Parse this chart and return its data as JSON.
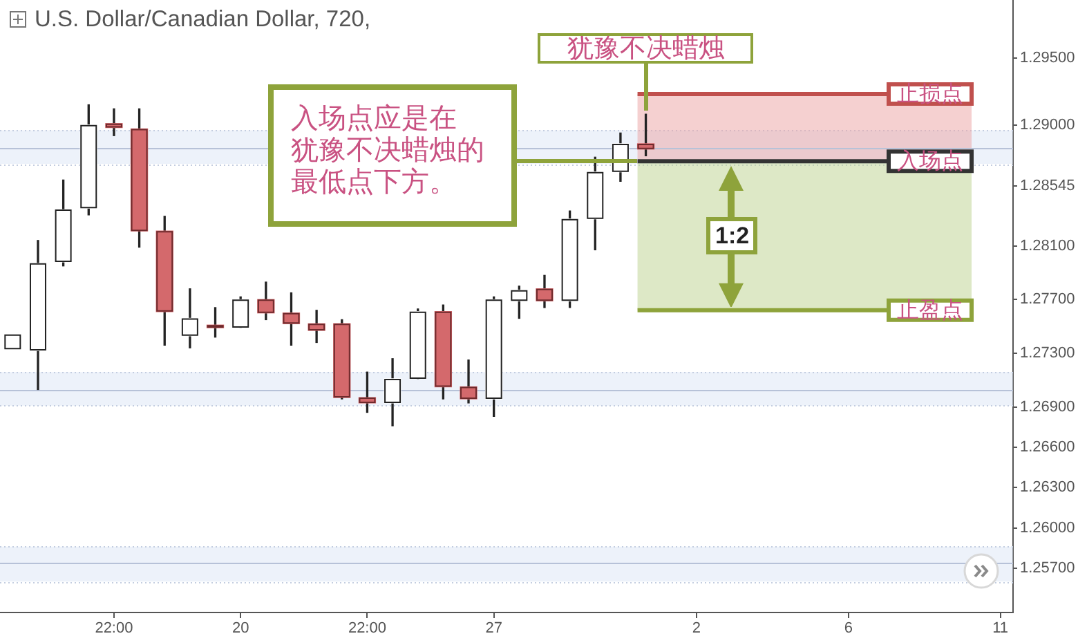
{
  "chart_data": {
    "type": "candlestick",
    "title": "U.S. Dollar/Canadian Dollar, 720,",
    "categories": [
      null,
      null,
      null,
      null,
      "22:00",
      null,
      null,
      null,
      null,
      "20",
      null,
      null,
      null,
      null,
      "22:00",
      null,
      null,
      null,
      null,
      "27",
      null,
      null,
      null,
      null,
      null,
      null,
      null,
      "2",
      null,
      null,
      null,
      null,
      null,
      "6",
      null,
      null,
      null,
      null,
      null,
      "11"
    ],
    "ohlc": [
      [
        1.2733,
        1.2744,
        1.2733,
        1.2744
      ],
      [
        1.2732,
        1.2814,
        1.2703,
        1.2797
      ],
      [
        1.2798,
        1.2859,
        1.2795,
        1.2837
      ],
      [
        1.2838,
        1.2915,
        1.2833,
        1.29
      ],
      [
        1.2901,
        1.2912,
        1.2892,
        1.2898
      ],
      [
        1.2897,
        1.2912,
        1.2809,
        1.2821
      ],
      [
        1.2821,
        1.2832,
        1.2736,
        1.2761
      ],
      [
        1.2743,
        1.2778,
        1.2734,
        1.2756
      ],
      [
        1.2751,
        1.2764,
        1.2742,
        1.2749
      ],
      [
        1.2749,
        1.2772,
        1.2749,
        1.277
      ],
      [
        1.277,
        1.2783,
        1.2755,
        1.276
      ],
      [
        1.276,
        1.2775,
        1.2736,
        1.2752
      ],
      [
        1.2752,
        1.2762,
        1.2738,
        1.2747
      ],
      [
        1.2752,
        1.2755,
        1.2696,
        1.2697
      ],
      [
        1.2697,
        1.2716,
        1.2686,
        1.2693
      ],
      [
        1.2693,
        1.2726,
        1.2676,
        1.2711
      ],
      [
        1.2711,
        1.2763,
        1.2711,
        1.2761
      ],
      [
        1.2761,
        1.2766,
        1.2696,
        1.2705
      ],
      [
        1.2705,
        1.2725,
        1.2693,
        1.2696
      ],
      [
        1.2696,
        1.2772,
        1.2683,
        1.277
      ],
      [
        1.2769,
        1.278,
        1.2756,
        1.2777
      ],
      [
        1.2778,
        1.2788,
        1.2764,
        1.2769
      ],
      [
        1.2769,
        1.2836,
        1.2764,
        1.283
      ],
      [
        1.283,
        1.2876,
        1.2807,
        1.2865
      ],
      [
        1.2865,
        1.2894,
        1.2858,
        1.2886
      ],
      [
        1.2886,
        1.2908,
        1.2877,
        1.2882
      ],
      null,
      null,
      null,
      null,
      null,
      null,
      null,
      null,
      null,
      null,
      null,
      null,
      null,
      null
    ],
    "colors": [
      "#ffffff",
      "#ffffff",
      "#ffffff",
      "#ffffff",
      "#d4696c",
      "#d4696c",
      "#d4696c",
      "#ffffff",
      "#d4696c",
      "#ffffff",
      "#d4696c",
      "#d4696c",
      "#d4696c",
      "#d4696c",
      "#d4696c",
      "#ffffff",
      "#ffffff",
      "#d4696c",
      "#d4696c",
      "#ffffff",
      "#ffffff",
      "#d4696c",
      "#ffffff",
      "#ffffff",
      "#ffffff",
      "#d4696c",
      null,
      null,
      null,
      null,
      null,
      null,
      null,
      null,
      null,
      null,
      null,
      null,
      null,
      null
    ],
    "ylim": [
      1.2537,
      1.2993
    ],
    "yticks": [
      {
        "value": 1.295,
        "label": "1.29500"
      },
      {
        "value": 1.29,
        "label": "1.29000"
      },
      1.28545,
      {
        "value": 1.281,
        "label": "1.28100"
      },
      {
        "value": 1.277,
        "label": "1.27700"
      },
      {
        "value": 1.273,
        "label": "1.27300"
      },
      {
        "value": 1.269,
        "label": "1.26900"
      },
      {
        "value": 1.266,
        "label": "1.26600"
      },
      {
        "value": 1.263,
        "label": "1.26300"
      },
      {
        "value": 1.26,
        "label": "1.26000"
      },
      {
        "value": 1.257,
        "label": "1.25700"
      }
    ],
    "bands": [
      {
        "axis": "y",
        "from": 1.2871,
        "to": 1.2896,
        "color": "#edf2fa"
      },
      {
        "axis": "y",
        "from": 1.2691,
        "to": 1.2716,
        "color": "#edf2fa"
      },
      {
        "axis": "y",
        "from": 1.256,
        "to": 1.2586,
        "color": "#edf2fa"
      },
      {
        "axis": "y",
        "from": 1.2873,
        "to": 1.2923,
        "color": "#f5d0d0"
      },
      {
        "axis": "y",
        "from": 1.2762,
        "to": 1.2873,
        "color": "#dde8c6"
      }
    ],
    "ref_lines": [
      {
        "axis": "y",
        "value": 1.2883,
        "color": "#b7c2d8"
      },
      {
        "axis": "y",
        "value": 1.2703,
        "color": "#b7c2d8"
      },
      {
        "axis": "y",
        "value": 1.2574,
        "color": "#b7c2d8"
      },
      {
        "axis": "y",
        "value": 1.2923,
        "label": "止损点",
        "color": "#c0504d"
      },
      {
        "axis": "y",
        "value": 1.2873,
        "label": "入场点",
        "color": "#333333"
      },
      {
        "axis": "y",
        "value": 1.2762,
        "label": "止盈点",
        "color": "#8ea33b"
      }
    ],
    "annotations": [
      "犹豫不决蜡烛",
      "入场点应是在犹豫不决蜡烛的最低点下方。",
      "1:2"
    ]
  }
}
